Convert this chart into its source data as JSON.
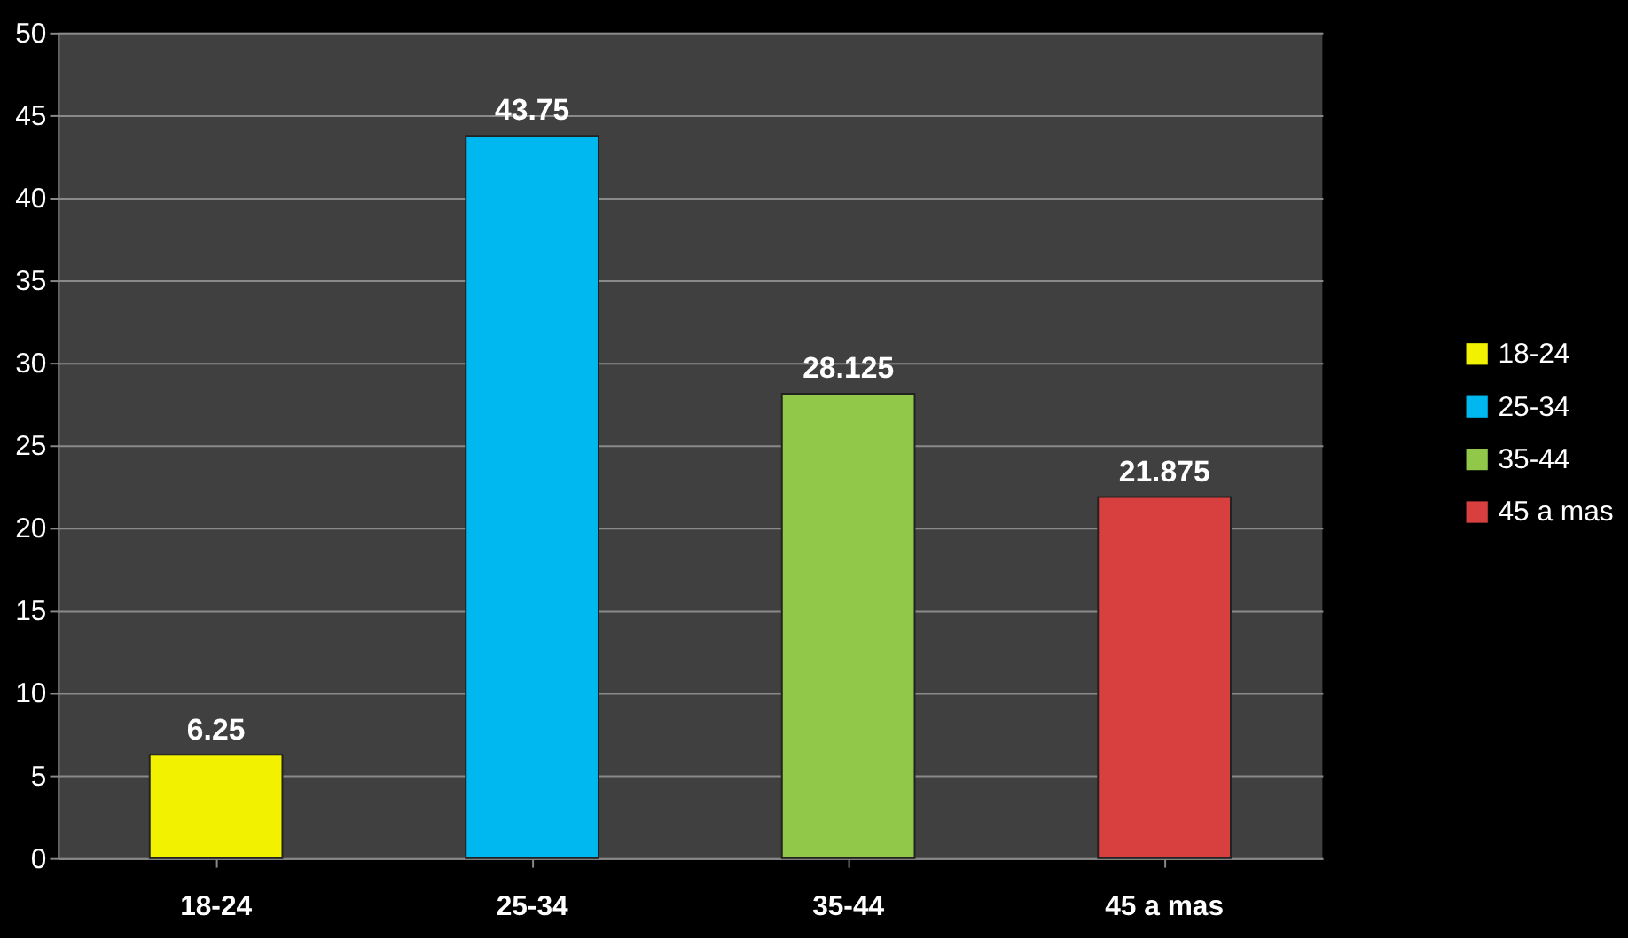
{
  "chart_data": {
    "type": "bar",
    "categories": [
      "18-24",
      "25-34",
      "35-44",
      "45 a mas"
    ],
    "series": [
      {
        "name": "18-24",
        "color": "#f2f200",
        "values": [
          6.25,
          null,
          null,
          null
        ]
      },
      {
        "name": "25-34",
        "color": "#00b8f0",
        "values": [
          null,
          43.75,
          null,
          null
        ]
      },
      {
        "name": "35-44",
        "color": "#92c84a",
        "values": [
          null,
          null,
          28.125,
          null
        ]
      },
      {
        "name": "45 a mas",
        "color": "#d84040",
        "values": [
          null,
          null,
          null,
          21.875
        ]
      }
    ],
    "ylim": [
      0,
      50
    ],
    "yticks": [
      0,
      5,
      10,
      15,
      20,
      25,
      30,
      35,
      40,
      45,
      50
    ],
    "grid": "y",
    "legend": "right",
    "data_labels": true
  }
}
